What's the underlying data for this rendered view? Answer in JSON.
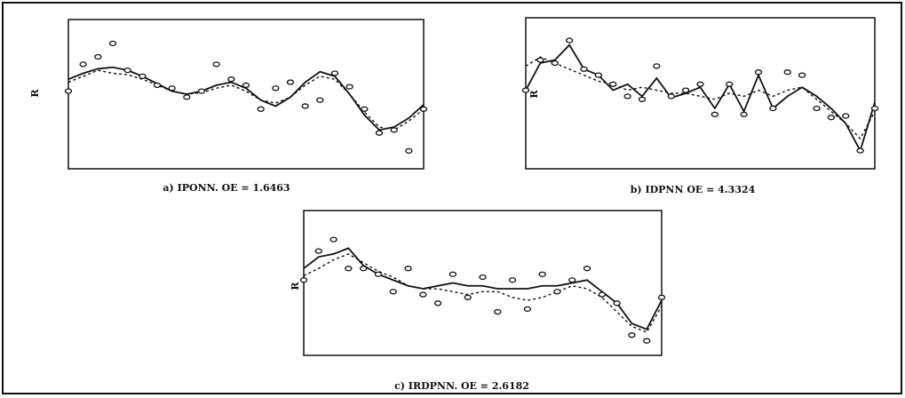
{
  "chart_data": [
    {
      "type": "line",
      "caption": "a) IPONN. OE = 1.6463",
      "ylabel": "R",
      "x": [
        0,
        1,
        2,
        3,
        4,
        5,
        6,
        7,
        8,
        9,
        10,
        11,
        12,
        13,
        14,
        15,
        16,
        17,
        18,
        19,
        20,
        21,
        22,
        23,
        24
      ],
      "xlim": [
        0,
        24
      ],
      "ylim": [
        0,
        100
      ],
      "series": [
        {
          "color": "#111111",
          "dash": false,
          "marker": false,
          "values": [
            60,
            64,
            67,
            68,
            66,
            62,
            57,
            52,
            50,
            52,
            56,
            58,
            54,
            46,
            42,
            48,
            58,
            65,
            62,
            50,
            36,
            26,
            28,
            34,
            43
          ]
        },
        {
          "color": "#111111",
          "dash": true,
          "marker": false,
          "values": [
            58,
            62,
            66,
            64,
            63,
            60,
            56,
            52,
            50,
            51,
            54,
            56,
            52,
            46,
            44,
            48,
            56,
            62,
            60,
            50,
            38,
            28,
            26,
            32,
            40
          ]
        },
        {
          "color": "#111111",
          "dash": false,
          "marker": true,
          "values": [
            52,
            70,
            75,
            84,
            66,
            62,
            56,
            54,
            48,
            52,
            70,
            60,
            56,
            40,
            54,
            58,
            42,
            46,
            64,
            55,
            40,
            24,
            26,
            12,
            40
          ]
        }
      ]
    },
    {
      "type": "line",
      "caption": "b) IDPNN  OE = 4.3324",
      "ylabel": "R",
      "x": [
        0,
        1,
        2,
        3,
        4,
        5,
        6,
        7,
        8,
        9,
        10,
        11,
        12,
        13,
        14,
        15,
        16,
        17,
        18,
        19,
        20,
        21,
        22,
        23,
        24
      ],
      "xlim": [
        0,
        24
      ],
      "ylim": [
        0,
        100
      ],
      "series": [
        {
          "color": "#111111",
          "dash": false,
          "marker": false,
          "values": [
            52,
            70,
            72,
            82,
            66,
            62,
            52,
            56,
            48,
            60,
            47,
            50,
            54,
            40,
            56,
            38,
            62,
            40,
            48,
            54,
            48,
            40,
            30,
            12,
            44
          ]
        },
        {
          "color": "#111111",
          "dash": true,
          "marker": false,
          "values": [
            68,
            74,
            70,
            66,
            62,
            58,
            56,
            52,
            54,
            52,
            50,
            50,
            48,
            46,
            50,
            48,
            52,
            48,
            52,
            54,
            46,
            38,
            30,
            20,
            38
          ]
        },
        {
          "color": "#111111",
          "dash": false,
          "marker": true,
          "values": [
            52,
            72,
            70,
            85,
            66,
            62,
            56,
            48,
            46,
            68,
            48,
            52,
            56,
            36,
            56,
            36,
            64,
            40,
            64,
            62,
            40,
            34,
            35,
            12,
            40
          ]
        }
      ]
    },
    {
      "type": "line",
      "caption": "c) IRDPNN. OE = 2.6182",
      "ylabel": "R",
      "x": [
        0,
        1,
        2,
        3,
        4,
        5,
        6,
        7,
        8,
        9,
        10,
        11,
        12,
        13,
        14,
        15,
        16,
        17,
        18,
        19,
        20,
        21,
        22,
        23,
        24
      ],
      "xlim": [
        0,
        24
      ],
      "ylim": [
        0,
        100
      ],
      "series": [
        {
          "color": "#111111",
          "dash": false,
          "marker": false,
          "values": [
            60,
            68,
            70,
            74,
            62,
            56,
            52,
            48,
            46,
            48,
            50,
            48,
            48,
            46,
            46,
            46,
            48,
            48,
            50,
            52,
            44,
            36,
            22,
            18,
            38
          ]
        },
        {
          "color": "#111111",
          "dash": true,
          "marker": false,
          "values": [
            55,
            60,
            66,
            70,
            64,
            58,
            54,
            48,
            46,
            46,
            44,
            42,
            44,
            44,
            40,
            38,
            40,
            44,
            48,
            46,
            40,
            30,
            20,
            16,
            34
          ]
        },
        {
          "color": "#111111",
          "dash": false,
          "marker": true,
          "values": [
            52,
            72,
            80,
            60,
            60,
            56,
            44,
            60,
            42,
            36,
            56,
            40,
            54,
            30,
            52,
            32,
            56,
            44,
            52,
            60,
            42,
            36,
            14,
            10,
            40
          ]
        }
      ]
    }
  ]
}
